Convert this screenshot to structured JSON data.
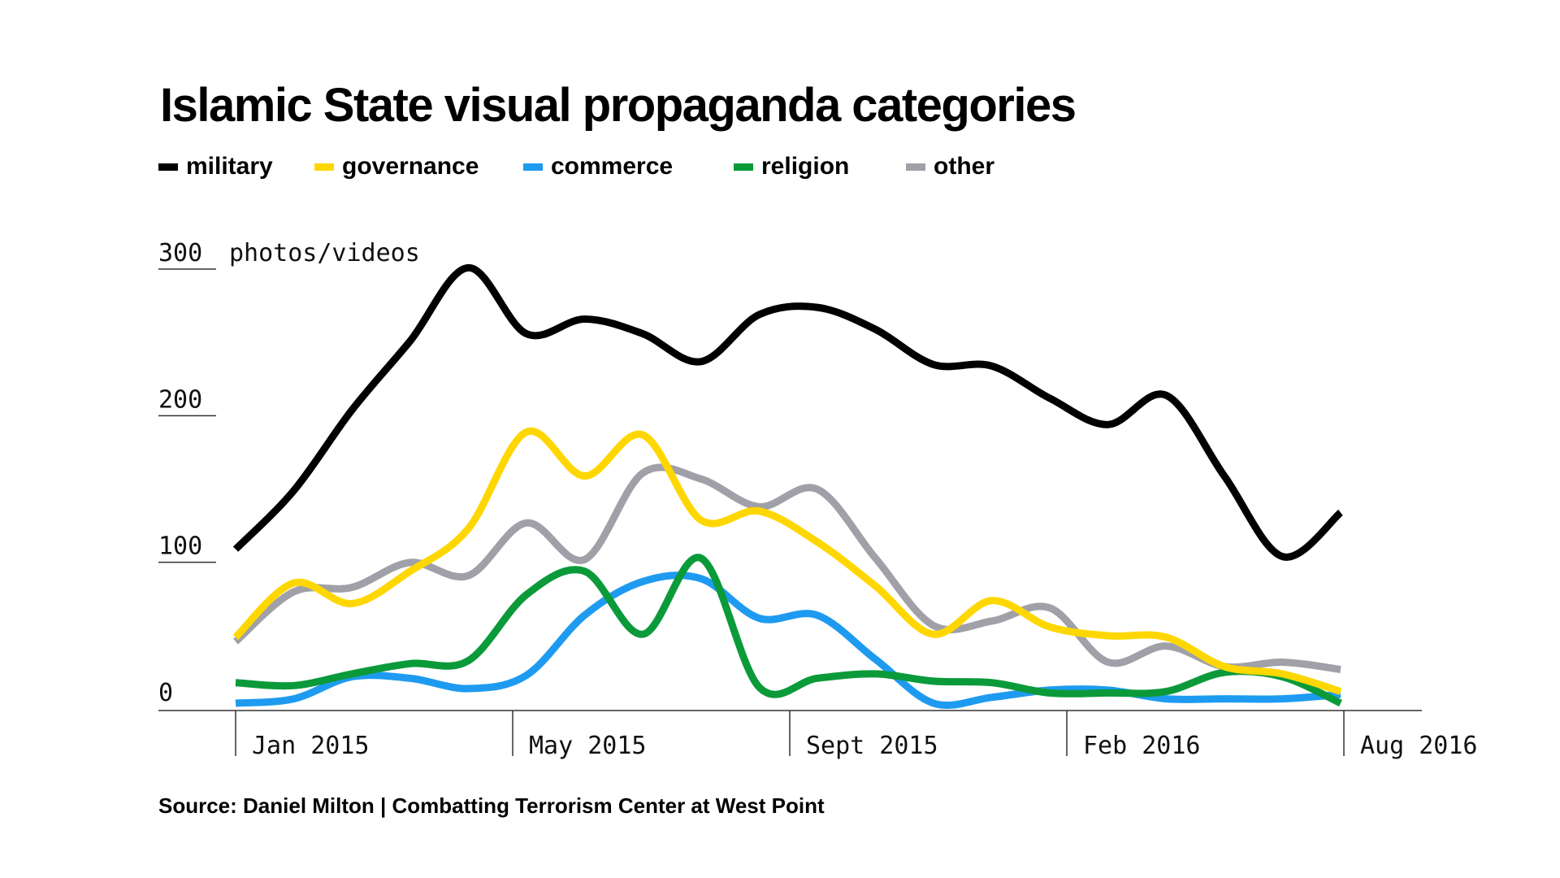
{
  "chart_data": {
    "type": "line",
    "title": "Islamic State visual propaganda categories",
    "ylabel": "photos/videos",
    "ylim": [
      0,
      300
    ],
    "yticks": [
      0,
      100,
      200,
      300
    ],
    "xticks": [
      "Jan 2015",
      "May 2015",
      "Sept 2015",
      "Feb 2016",
      "Aug 2016"
    ],
    "x": [
      "2014-12",
      "2015-01",
      "2015-02",
      "2015-03",
      "2015-04",
      "2015-05",
      "2015-06",
      "2015-07",
      "2015-08",
      "2015-09",
      "2015-10",
      "2015-11",
      "2015-12",
      "2016-01",
      "2016-02",
      "2016-03",
      "2016-04",
      "2016-05",
      "2016-06",
      "2016-07"
    ],
    "legend_position": "top",
    "series": [
      {
        "name": "military",
        "color": "#000000",
        "values": [
          110,
          150,
          205,
          252,
          302,
          257,
          267,
          257,
          238,
          270,
          275,
          260,
          236,
          235,
          213,
          195,
          215,
          160,
          105,
          135
        ]
      },
      {
        "name": "governance",
        "color": "#FFD700",
        "values": [
          50,
          87,
          73,
          95,
          124,
          190,
          160,
          188,
          130,
          136,
          115,
          85,
          52,
          75,
          57,
          51,
          50,
          30,
          25,
          13
        ]
      },
      {
        "name": "commerce",
        "color": "#1E9BF0",
        "values": [
          5,
          8,
          23,
          22,
          15,
          24,
          65,
          88,
          90,
          63,
          65,
          35,
          5,
          9,
          14,
          14,
          8,
          8,
          8,
          11
        ]
      },
      {
        "name": "religion",
        "color": "#0B9A3A",
        "values": [
          19,
          17,
          25,
          32,
          34,
          79,
          95,
          52,
          104,
          16,
          22,
          25,
          20,
          19,
          12,
          12,
          13,
          26,
          23,
          5
        ]
      },
      {
        "name": "other",
        "color": "#A0A0A8",
        "values": [
          47,
          81,
          84,
          101,
          92,
          128,
          103,
          162,
          158,
          139,
          151,
          104,
          58,
          61,
          70,
          33,
          44,
          30,
          33,
          28
        ]
      }
    ]
  },
  "source": "Source: Daniel Milton | Combatting Terrorism Center at West Point"
}
